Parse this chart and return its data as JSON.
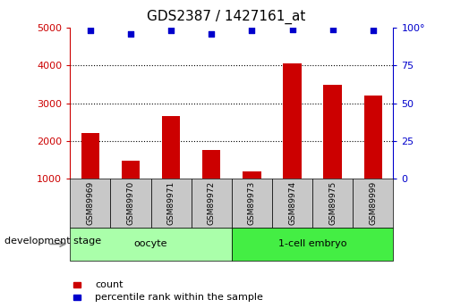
{
  "title": "GDS2387 / 1427161_at",
  "samples": [
    "GSM89969",
    "GSM89970",
    "GSM89971",
    "GSM89972",
    "GSM89973",
    "GSM89974",
    "GSM89975",
    "GSM89999"
  ],
  "counts": [
    2200,
    1470,
    2650,
    1750,
    1200,
    4050,
    3480,
    3200
  ],
  "percentile_ranks": [
    98,
    96,
    98,
    96,
    98,
    99,
    99,
    98
  ],
  "groups": [
    {
      "label": "oocyte",
      "indices": [
        0,
        1,
        2,
        3
      ],
      "color": "#aaffaa"
    },
    {
      "label": "1-cell embryo",
      "indices": [
        4,
        5,
        6,
        7
      ],
      "color": "#44ee44"
    }
  ],
  "bar_color": "#cc0000",
  "dot_color": "#0000cc",
  "left_axis_color": "#cc0000",
  "right_axis_color": "#0000cc",
  "ylim_left": [
    1000,
    5000
  ],
  "ylim_right": [
    0,
    100
  ],
  "yticks_left": [
    1000,
    2000,
    3000,
    4000,
    5000
  ],
  "yticks_right": [
    0,
    25,
    50,
    75,
    100
  ],
  "ytick_right_labels": [
    "0",
    "25",
    "50",
    "75",
    "100°"
  ],
  "grid_values": [
    2000,
    3000,
    4000
  ],
  "bg_color": "#ffffff",
  "legend_count_label": "count",
  "legend_pct_label": "percentile rank within the sample",
  "tick_bg_color": "#c8c8c8",
  "dev_stage_label": "development stage",
  "title_fontsize": 11,
  "bar_width": 0.45
}
